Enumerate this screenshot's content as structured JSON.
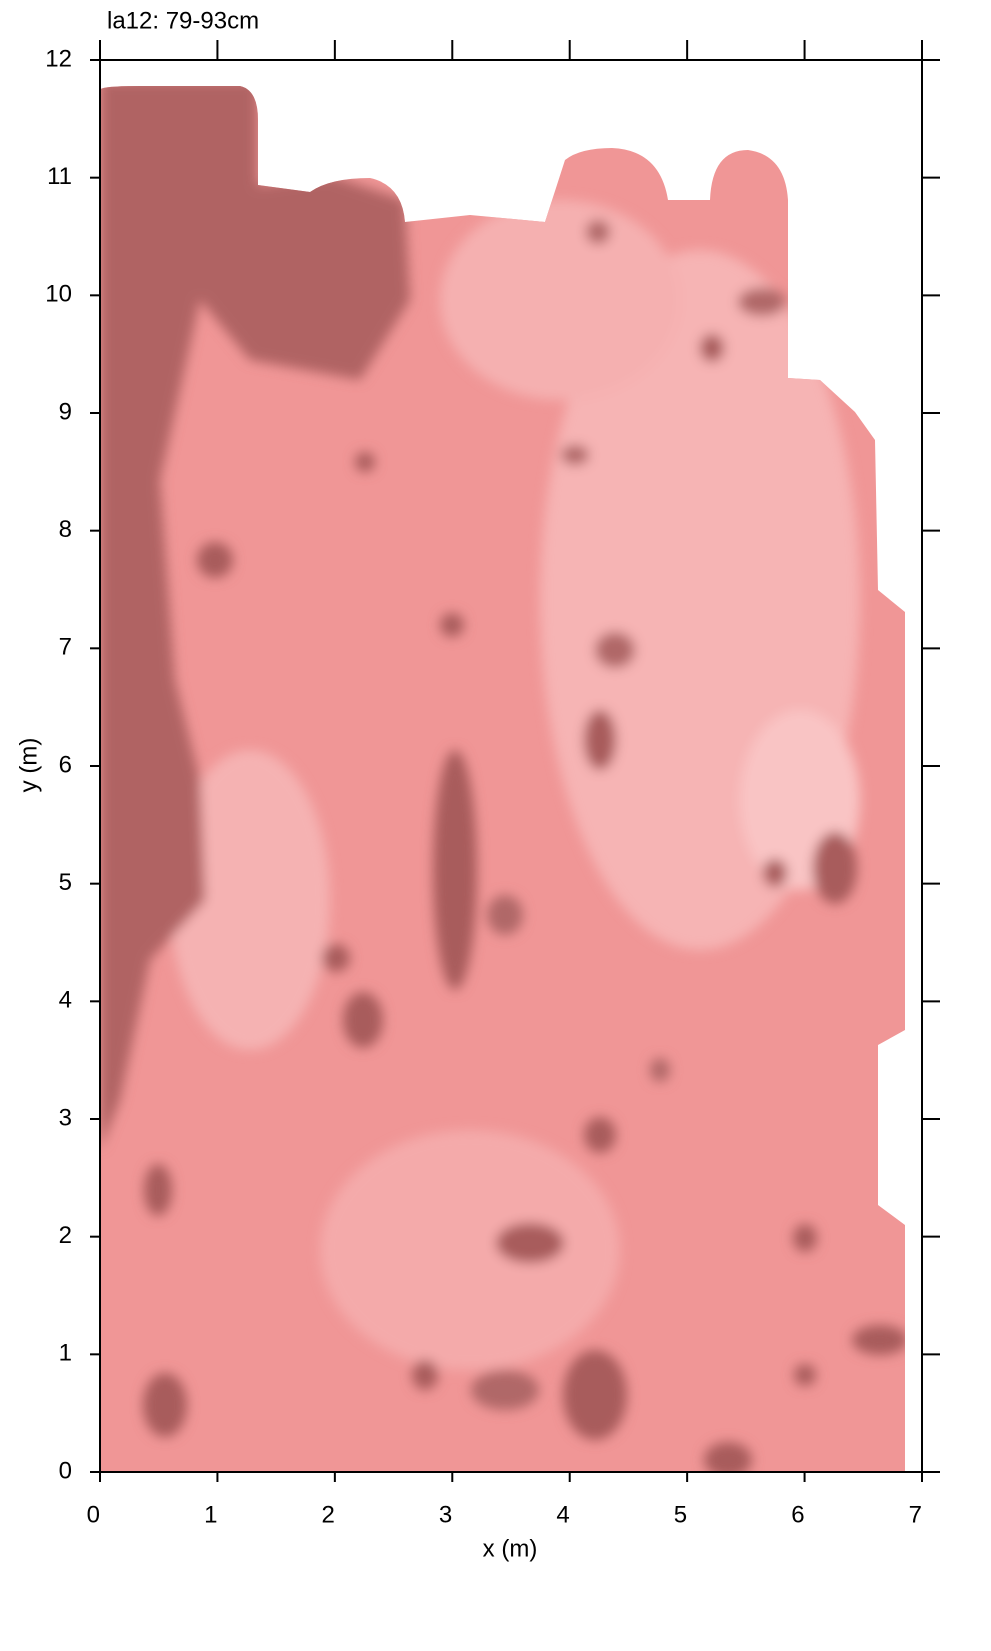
{
  "chart_data": {
    "type": "heatmap",
    "title": "la12: 79-93cm",
    "x_label": "x (m)",
    "y_label": "y (m)",
    "xlim": [
      0,
      7
    ],
    "ylim": [
      0,
      12
    ],
    "xticks": [
      0,
      1,
      2,
      3,
      4,
      5,
      6,
      7
    ],
    "yticks": [
      0,
      1,
      2,
      3,
      4,
      5,
      6,
      7,
      8,
      9,
      10,
      11,
      12
    ]
  }
}
